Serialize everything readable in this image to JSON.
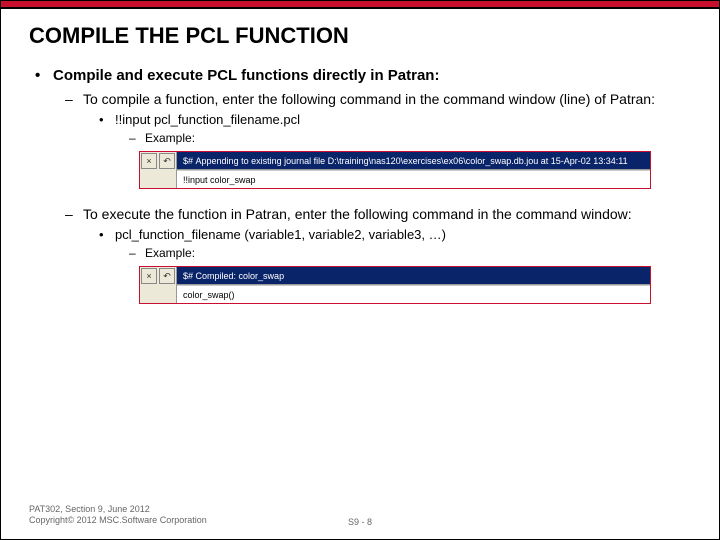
{
  "title": "COMPILE THE PCL FUNCTION",
  "main_bullet": "Compile and execute PCL functions directly in Patran:",
  "compile": {
    "text": "To compile a function, enter the following command in the command window (line) of Patran:",
    "cmd": "!!input pcl_function_filename.pcl",
    "example_label": "Example:",
    "status_prefix": "$#",
    "status_text": "Appending to existing journal file D:\\training\\nas120\\exercises\\ex06\\color_swap.db.jou at 15-Apr-02 13:34:11",
    "input_text": "!!input color_swap"
  },
  "execute": {
    "text": "To execute the function in Patran, enter the following command in the command window:",
    "cmd": "pcl_function_filename (variable1, variable2, variable3, …)",
    "example_label": "Example:",
    "status_prefix": "$#",
    "status_text": "Compiled: color_swap",
    "input_text": "color_swap()"
  },
  "footer": {
    "line1": "PAT302, Section 9, June 2012",
    "line2": "Copyright© 2012 MSC.Software Corporation",
    "page": "S9 - 8"
  },
  "buttons": {
    "close": "×",
    "undo": "↶"
  },
  "colors": {
    "accent": "#c8102e",
    "titlebar": "#0a246a"
  }
}
